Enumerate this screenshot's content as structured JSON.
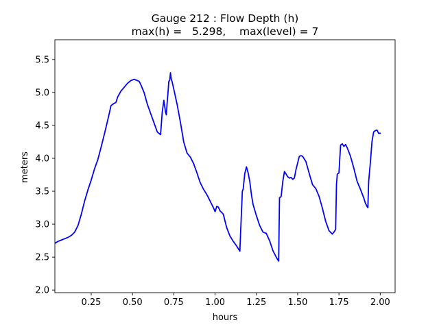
{
  "chart_data": {
    "type": "line",
    "title_lines": [
      "Gauge 212 : Flow Depth (h)",
      "max(h) =   5.298,    max(level) = 7"
    ],
    "xlabel": "hours",
    "ylabel": "meters",
    "xlim": [
      0.03,
      2.09
    ],
    "ylim": [
      1.96,
      5.8
    ],
    "x_ticks": [
      0.25,
      0.5,
      0.75,
      1.0,
      1.25,
      1.5,
      1.75,
      2.0
    ],
    "x_tick_labels": [
      "0.25",
      "0.50",
      "0.75",
      "1.00",
      "1.25",
      "1.50",
      "1.75",
      "2.00"
    ],
    "y_ticks": [
      2.0,
      2.5,
      3.0,
      3.5,
      4.0,
      4.5,
      5.0,
      5.5
    ],
    "y_tick_labels": [
      "2.0",
      "2.5",
      "3.0",
      "3.5",
      "4.0",
      "4.5",
      "5.0",
      "5.5"
    ],
    "grid": false,
    "series": [
      {
        "color": "#0000ff",
        "x": [
          0.03,
          0.05,
          0.07,
          0.09,
          0.11,
          0.13,
          0.15,
          0.17,
          0.19,
          0.21,
          0.23,
          0.25,
          0.27,
          0.29,
          0.31,
          0.33,
          0.35,
          0.37,
          0.38,
          0.4,
          0.41,
          0.43,
          0.45,
          0.47,
          0.49,
          0.51,
          0.52,
          0.54,
          0.55,
          0.57,
          0.59,
          0.61,
          0.63,
          0.65,
          0.67,
          0.68,
          0.69,
          0.7,
          0.705,
          0.71,
          0.715,
          0.72,
          0.725,
          0.73,
          0.735,
          0.74,
          0.75,
          0.77,
          0.79,
          0.81,
          0.83,
          0.85,
          0.87,
          0.89,
          0.91,
          0.93,
          0.95,
          0.97,
          0.99,
          1.0,
          1.01,
          1.02,
          1.03,
          1.04,
          1.05,
          1.07,
          1.09,
          1.11,
          1.13,
          1.15,
          1.165,
          1.17,
          1.18,
          1.19,
          1.2,
          1.21,
          1.22,
          1.23,
          1.25,
          1.27,
          1.29,
          1.31,
          1.33,
          1.35,
          1.37,
          1.385,
          1.39,
          1.4,
          1.41,
          1.42,
          1.43,
          1.44,
          1.45,
          1.46,
          1.47,
          1.48,
          1.49,
          1.51,
          1.52,
          1.53,
          1.55,
          1.57,
          1.59,
          1.61,
          1.63,
          1.65,
          1.67,
          1.69,
          1.71,
          1.72,
          1.73,
          1.735,
          1.74,
          1.75,
          1.76,
          1.77,
          1.78,
          1.79,
          1.8,
          1.82,
          1.84,
          1.86,
          1.88,
          1.9,
          1.91,
          1.92,
          1.925,
          1.93,
          1.94,
          1.95,
          1.96,
          1.97,
          1.98,
          1.99,
          2.0
        ],
        "y": [
          2.71,
          2.74,
          2.76,
          2.78,
          2.8,
          2.83,
          2.88,
          2.98,
          3.15,
          3.35,
          3.52,
          3.67,
          3.84,
          3.98,
          4.17,
          4.37,
          4.58,
          4.8,
          4.82,
          4.85,
          4.93,
          5.02,
          5.08,
          5.14,
          5.18,
          5.2,
          5.19,
          5.17,
          5.12,
          5.0,
          4.82,
          4.68,
          4.54,
          4.4,
          4.36,
          4.7,
          4.88,
          4.7,
          4.66,
          4.85,
          5.0,
          5.17,
          5.18,
          5.3,
          5.2,
          5.16,
          5.05,
          4.82,
          4.55,
          4.25,
          4.08,
          4.02,
          3.92,
          3.78,
          3.63,
          3.53,
          3.45,
          3.35,
          3.25,
          3.19,
          3.27,
          3.26,
          3.2,
          3.18,
          3.15,
          2.95,
          2.82,
          2.74,
          2.67,
          2.59,
          3.5,
          3.53,
          3.77,
          3.87,
          3.78,
          3.65,
          3.45,
          3.3,
          3.13,
          2.98,
          2.88,
          2.86,
          2.75,
          2.6,
          2.5,
          2.44,
          3.4,
          3.42,
          3.65,
          3.8,
          3.76,
          3.72,
          3.7,
          3.71,
          3.68,
          3.7,
          3.83,
          4.03,
          4.04,
          4.03,
          3.95,
          3.77,
          3.6,
          3.54,
          3.42,
          3.24,
          3.04,
          2.9,
          2.85,
          2.88,
          2.92,
          3.6,
          3.76,
          3.78,
          4.2,
          4.22,
          4.18,
          4.21,
          4.16,
          4.03,
          3.85,
          3.65,
          3.53,
          3.4,
          3.32,
          3.27,
          3.25,
          3.65,
          3.93,
          4.25,
          4.4,
          4.42,
          4.43,
          4.38,
          4.38
        ]
      }
    ]
  }
}
